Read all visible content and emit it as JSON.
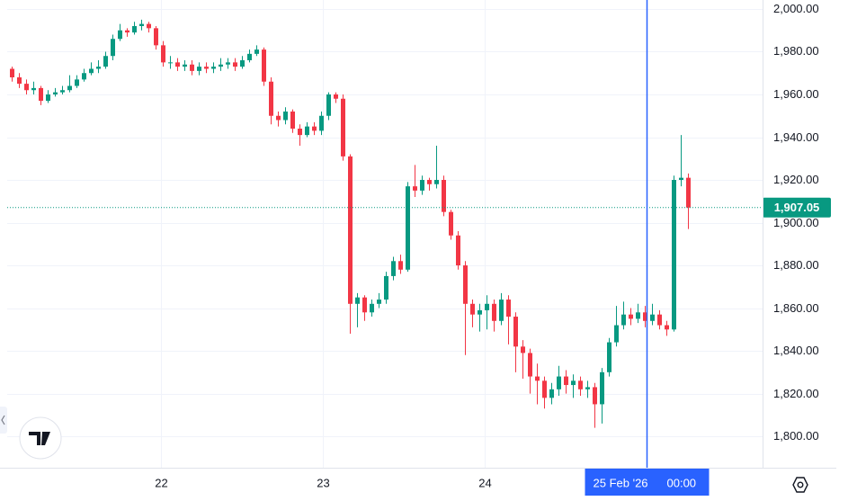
{
  "chart_data": {
    "type": "candlestick",
    "up_color": "#089981",
    "down_color": "#f23645",
    "grid": true,
    "xlim": [
      21.05,
      25.717
    ],
    "ylim": [
      1785.3,
      2004.2
    ],
    "xticks": [
      22,
      23,
      24
    ],
    "yticks": [
      {
        "value": 1800,
        "label": "1,800.00"
      },
      {
        "value": 1820,
        "label": "1,820.00"
      },
      {
        "value": 1840,
        "label": "1,840.00"
      },
      {
        "value": 1860,
        "label": "1,860.00"
      },
      {
        "value": 1880,
        "label": "1,880.00"
      },
      {
        "value": 1900,
        "label": "1,900.00"
      },
      {
        "value": 1920,
        "label": "1,920.00"
      },
      {
        "value": 1940,
        "label": "1,940.00"
      },
      {
        "value": 1960,
        "label": "1,960.00"
      },
      {
        "value": 1980,
        "label": "1,980.00"
      },
      {
        "value": 2000,
        "label": "2,000.00"
      }
    ],
    "last_price": {
      "value": 1907.05,
      "label": "1,907.05"
    },
    "crosshair_x": 25,
    "crosshair_date": "25 Feb '26",
    "crosshair_time": "00:00",
    "x": [
      21.079,
      21.123,
      21.168,
      21.212,
      21.257,
      21.301,
      21.346,
      21.39,
      21.434,
      21.479,
      21.523,
      21.568,
      21.612,
      21.656,
      21.701,
      21.745,
      21.79,
      21.834,
      21.879,
      21.923,
      21.967,
      22.012,
      22.056,
      22.101,
      22.145,
      22.19,
      22.234,
      22.278,
      22.323,
      22.367,
      22.412,
      22.456,
      22.501,
      22.545,
      22.589,
      22.634,
      22.678,
      22.723,
      22.767,
      22.812,
      22.856,
      22.9,
      22.945,
      22.989,
      23.034,
      23.078,
      23.123,
      23.167,
      23.211,
      23.256,
      23.3,
      23.345,
      23.389,
      23.433,
      23.478,
      23.522,
      23.567,
      23.611,
      23.656,
      23.7,
      23.744,
      23.789,
      23.833,
      23.878,
      23.922,
      23.967,
      24.011,
      24.055,
      24.1,
      24.144,
      24.189,
      24.233,
      24.278,
      24.322,
      24.366,
      24.411,
      24.455,
      24.5,
      24.544,
      24.588,
      24.633,
      24.677,
      24.722,
      24.766,
      24.811,
      24.855,
      24.899,
      24.944,
      24.988,
      25.033,
      25.077,
      25.122,
      25.166,
      25.211,
      25.255
    ],
    "open": [
      1972,
      1968,
      1965,
      1962,
      1963,
      1957,
      1960,
      1961,
      1962,
      1964,
      1967,
      1970,
      1972,
      1973,
      1978,
      1986,
      1990,
      1989,
      1992,
      1993,
      1991,
      1983,
      1975,
      1975,
      1973,
      1974,
      1971,
      1973,
      1972,
      1973,
      1974,
      1975,
      1973,
      1976,
      1979,
      1981,
      1966,
      1950,
      1948,
      1952,
      1944,
      1941,
      1945,
      1943,
      1950,
      1960,
      1958,
      1931,
      1862,
      1865,
      1858,
      1862,
      1864,
      1875,
      1882,
      1878,
      1917,
      1915,
      1920,
      1918,
      1920,
      1905,
      1894,
      1880,
      1862,
      1857,
      1859,
      1862,
      1854,
      1864,
      1856,
      1842,
      1839,
      1828,
      1826,
      1818,
      1822,
      1828,
      1824,
      1826,
      1822,
      1823,
      1815,
      1830,
      1844,
      1852,
      1857,
      1855,
      1858,
      1854,
      1857,
      1852,
      1850,
      1920,
      1921
    ],
    "high": [
      1973,
      1970,
      1967,
      1966,
      1964,
      1962,
      1963,
      1964,
      1969,
      1969,
      1972,
      1975,
      1976,
      1980,
      1988,
      1993,
      1991,
      1994,
      1995,
      1994,
      1992,
      1985,
      1978,
      1977,
      1976,
      1976,
      1975,
      1975,
      1975,
      1977,
      1977,
      1977,
      1978,
      1981,
      1983,
      1982,
      1968,
      1952,
      1954,
      1953,
      1946,
      1947,
      1947,
      1952,
      1961,
      1961,
      1960,
      1932,
      1867,
      1866,
      1864,
      1867,
      1877,
      1884,
      1885,
      1919,
      1927,
      1922,
      1921,
      1936,
      1922,
      1906,
      1896,
      1882,
      1864,
      1862,
      1866,
      1864,
      1867,
      1866,
      1858,
      1845,
      1841,
      1834,
      1828,
      1825,
      1833,
      1831,
      1829,
      1828,
      1826,
      1825,
      1832,
      1846,
      1861,
      1863,
      1860,
      1862,
      1861,
      1862,
      1859,
      1854,
      1922,
      1941,
      1923
    ],
    "low": [
      1966,
      1963,
      1960,
      1960,
      1955,
      1956,
      1959,
      1960,
      1961,
      1963,
      1966,
      1969,
      1970,
      1972,
      1976,
      1985,
      1987,
      1988,
      1990,
      1989,
      1981,
      1973,
      1972,
      1971,
      1971,
      1969,
      1969,
      1970,
      1970,
      1971,
      1972,
      1971,
      1972,
      1975,
      1978,
      1964,
      1946,
      1945,
      1946,
      1942,
      1936,
      1940,
      1941,
      1941,
      1948,
      1956,
      1929,
      1848,
      1851,
      1854,
      1856,
      1860,
      1862,
      1873,
      1876,
      1877,
      1912,
      1913,
      1915,
      1916,
      1903,
      1892,
      1878,
      1838,
      1851,
      1849,
      1850,
      1849,
      1852,
      1843,
      1830,
      1827,
      1820,
      1815,
      1813,
      1815,
      1819,
      1820,
      1818,
      1819,
      1818,
      1804,
      1806,
      1828,
      1842,
      1850,
      1852,
      1853,
      1851,
      1852,
      1850,
      1847,
      1849,
      1917,
      1897
    ],
    "close": [
      1968,
      1965,
      1962,
      1963,
      1957,
      1960,
      1961,
      1962,
      1964,
      1967,
      1970,
      1972,
      1973,
      1978,
      1986,
      1990,
      1989,
      1992,
      1993,
      1991,
      1983,
      1975,
      1975,
      1973,
      1974,
      1971,
      1973,
      1972,
      1973,
      1974,
      1975,
      1973,
      1976,
      1979,
      1981,
      1966,
      1950,
      1948,
      1952,
      1944,
      1941,
      1945,
      1943,
      1950,
      1960,
      1958,
      1931,
      1862,
      1865,
      1858,
      1862,
      1864,
      1875,
      1882,
      1878,
      1917,
      1915,
      1920,
      1918,
      1920,
      1905,
      1894,
      1880,
      1862,
      1857,
      1859,
      1862,
      1854,
      1864,
      1856,
      1842,
      1839,
      1828,
      1826,
      1818,
      1822,
      1828,
      1824,
      1826,
      1822,
      1823,
      1815,
      1830,
      1844,
      1852,
      1857,
      1855,
      1858,
      1854,
      1857,
      1852,
      1850,
      1920,
      1921,
      1907.05
    ]
  }
}
